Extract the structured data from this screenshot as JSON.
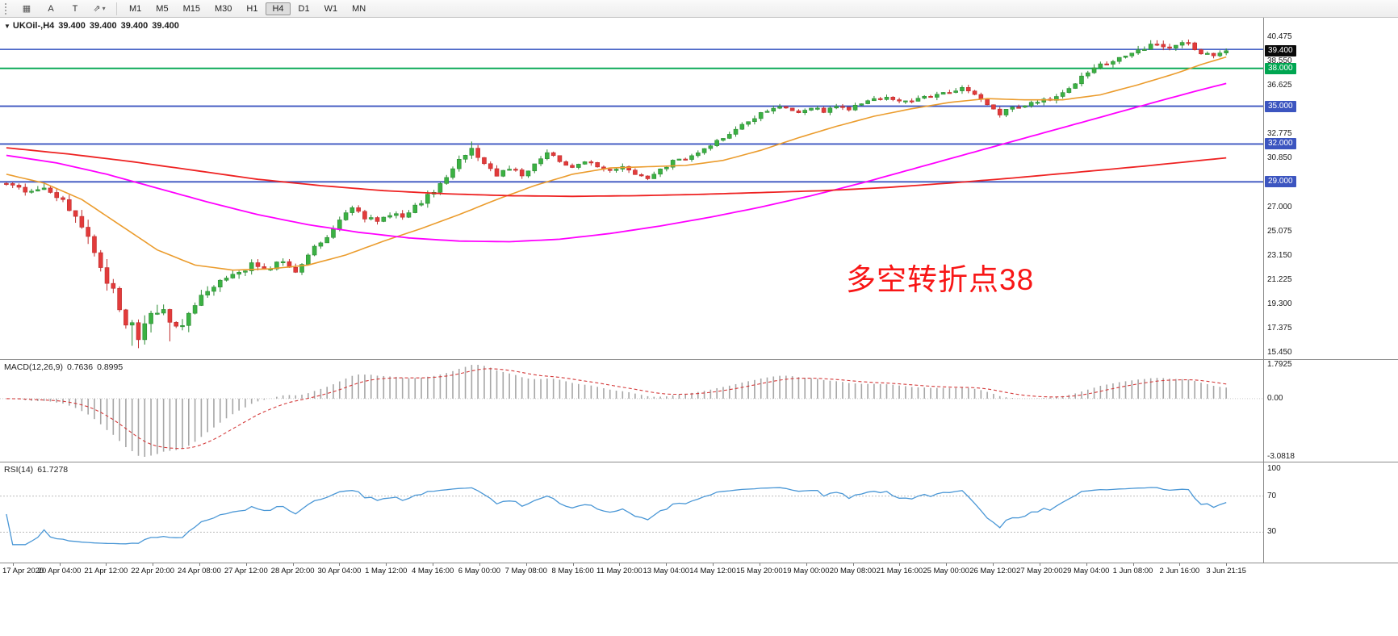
{
  "toolbar": {
    "tools": [
      {
        "name": "charts-bar",
        "glyph": "▦"
      },
      {
        "name": "cursor-tool",
        "label": "A"
      },
      {
        "name": "text-tool",
        "label": "T"
      },
      {
        "name": "drawing-tools",
        "glyph": "⇗",
        "dropdown": "▾"
      }
    ],
    "timeframes": [
      "M1",
      "M5",
      "M15",
      "M30",
      "H1",
      "H4",
      "D1",
      "W1",
      "MN"
    ],
    "active_timeframe": "H4"
  },
  "chart": {
    "marker_glyph": "▼",
    "symbol_period": "UKOil-,H4",
    "ohlc": [
      "39.400",
      "39.400",
      "39.400",
      "39.400"
    ],
    "annotation": {
      "text": "多空转折点38",
      "color": "#f81616"
    },
    "colors": {
      "up": "#3bb143",
      "up_border": "#2b8a33",
      "down": "#e23b3b",
      "down_border": "#bf2c2c"
    },
    "price_scale": {
      "max": 40.475,
      "min": 15.45,
      "step": 1.925,
      "current": {
        "label": "39.400",
        "price": 39.4,
        "bg": "#0a0a0a",
        "fg": "#ffffff"
      }
    },
    "levels": [
      {
        "name": "hline-39-5",
        "price": 39.5,
        "color": "#4a66c8",
        "label": null
      },
      {
        "name": "hline-38",
        "price": 38.0,
        "color": "#00a651",
        "label": "38.000"
      },
      {
        "name": "hline-35",
        "price": 35.0,
        "color": "#3c55c0",
        "label": "35.000"
      },
      {
        "name": "hline-32",
        "price": 32.0,
        "color": "#3c55c0",
        "label": "32.000"
      },
      {
        "name": "hline-29",
        "price": 29.0,
        "color": "#3c55c0",
        "label": "29.000"
      }
    ]
  },
  "macd": {
    "title": "MACD(12,26,9)",
    "value_main": "0.7636",
    "value_signal": "0.8995",
    "scale_labels": {
      "top": "1.7925",
      "zero": "0.00",
      "bottom": "-3.0818"
    },
    "histogram_color": "#a6a6a6",
    "signal_color": "#d43a3a"
  },
  "rsi": {
    "title": "RSI(14)",
    "value": "61.7278",
    "scale_labels": [
      "100",
      "70",
      "30"
    ],
    "line_color": "#4a97d6"
  },
  "time_axis": {
    "labels": [
      "17 Apr 2020",
      "20 Apr 04:00",
      "21 Apr 12:00",
      "22 Apr 20:00",
      "24 Apr 08:00",
      "27 Apr 12:00",
      "28 Apr 20:00",
      "30 Apr 04:00",
      "1 May 12:00",
      "4 May 16:00",
      "6 May 00:00",
      "7 May 08:00",
      "8 May 16:00",
      "11 May 20:00",
      "13 May 04:00",
      "14 May 12:00",
      "15 May 20:00",
      "19 May 00:00",
      "20 May 08:00",
      "21 May 16:00",
      "25 May 00:00",
      "26 May 12:00",
      "27 May 20:00",
      "29 May 04:00",
      "1 Jun 08:00",
      "2 Jun 16:00",
      "3 Jun 21:15"
    ]
  },
  "chart_data": {
    "type": "candlestick",
    "symbol": "UKOil-",
    "timeframe": "H4",
    "n_candles": 195,
    "close_waypoints": [
      [
        0,
        28.8
      ],
      [
        3,
        28.3
      ],
      [
        6,
        28.6
      ],
      [
        9,
        27.6
      ],
      [
        11,
        26.3
      ],
      [
        13,
        24.6
      ],
      [
        15,
        22.3
      ],
      [
        17,
        20.2
      ],
      [
        19,
        18.0
      ],
      [
        21,
        16.9
      ],
      [
        23,
        18.3
      ],
      [
        25,
        19.2
      ],
      [
        26,
        18.1
      ],
      [
        28,
        17.4
      ],
      [
        30,
        19.4
      ],
      [
        33,
        20.8
      ],
      [
        36,
        21.6
      ],
      [
        39,
        22.4
      ],
      [
        41,
        21.9
      ],
      [
        44,
        22.8
      ],
      [
        46,
        21.9
      ],
      [
        48,
        23.3
      ],
      [
        51,
        24.6
      ],
      [
        53,
        26.0
      ],
      [
        55,
        26.8
      ],
      [
        57,
        26.2
      ],
      [
        59,
        25.8
      ],
      [
        61,
        26.5
      ],
      [
        63,
        26.1
      ],
      [
        66,
        27.4
      ],
      [
        68,
        28.3
      ],
      [
        70,
        29.5
      ],
      [
        72,
        30.9
      ],
      [
        74,
        31.6
      ],
      [
        76,
        30.6
      ],
      [
        78,
        29.6
      ],
      [
        80,
        30.1
      ],
      [
        82,
        29.5
      ],
      [
        84,
        30.4
      ],
      [
        86,
        31.2
      ],
      [
        88,
        30.7
      ],
      [
        90,
        30.2
      ],
      [
        92,
        30.6
      ],
      [
        94,
        30.3
      ],
      [
        96,
        29.8
      ],
      [
        98,
        30.1
      ],
      [
        100,
        29.5
      ],
      [
        102,
        29.2
      ],
      [
        104,
        29.9
      ],
      [
        106,
        30.6
      ],
      [
        108,
        30.9
      ],
      [
        110,
        31.4
      ],
      [
        112,
        31.9
      ],
      [
        114,
        32.5
      ],
      [
        116,
        33.2
      ],
      [
        118,
        33.9
      ],
      [
        120,
        34.4
      ],
      [
        123,
        34.9
      ],
      [
        126,
        34.5
      ],
      [
        128,
        34.9
      ],
      [
        130,
        34.6
      ],
      [
        132,
        35.1
      ],
      [
        134,
        34.8
      ],
      [
        137,
        35.4
      ],
      [
        140,
        35.7
      ],
      [
        142,
        35.3
      ],
      [
        145,
        35.6
      ],
      [
        148,
        35.9
      ],
      [
        150,
        36.1
      ],
      [
        152,
        36.4
      ],
      [
        154,
        35.8
      ],
      [
        156,
        35.1
      ],
      [
        158,
        34.4
      ],
      [
        160,
        34.9
      ],
      [
        163,
        35.3
      ],
      [
        166,
        35.6
      ],
      [
        168,
        36.2
      ],
      [
        170,
        36.9
      ],
      [
        172,
        37.6
      ],
      [
        174,
        38.2
      ],
      [
        176,
        38.6
      ],
      [
        178,
        38.9
      ],
      [
        180,
        39.4
      ],
      [
        182,
        39.9
      ],
      [
        184,
        39.6
      ],
      [
        186,
        39.9
      ],
      [
        188,
        40.0
      ],
      [
        190,
        39.2
      ],
      [
        192,
        39.0
      ],
      [
        194,
        39.4
      ]
    ],
    "volatility_waypoints": [
      [
        0,
        0.3
      ],
      [
        10,
        0.55
      ],
      [
        14,
        0.95
      ],
      [
        22,
        0.95
      ],
      [
        28,
        0.7
      ],
      [
        34,
        0.5
      ],
      [
        50,
        0.35
      ],
      [
        60,
        0.4
      ],
      [
        70,
        0.45
      ],
      [
        80,
        0.35
      ],
      [
        100,
        0.3
      ],
      [
        120,
        0.3
      ],
      [
        150,
        0.3
      ],
      [
        170,
        0.35
      ],
      [
        185,
        0.4
      ],
      [
        194,
        0.3
      ]
    ],
    "force_low": [
      [
        20,
        16.0
      ],
      [
        26,
        16.35
      ]
    ],
    "force_high": [
      [
        74,
        32.2
      ],
      [
        188,
        40.28
      ]
    ],
    "last_close": 39.4,
    "moving_averages": [
      {
        "name": "ma-fast-orange",
        "color": "#eb9c2d",
        "width": 1.6,
        "points": [
          [
            0,
            29.6
          ],
          [
            6,
            28.9
          ],
          [
            12,
            27.6
          ],
          [
            18,
            25.6
          ],
          [
            24,
            23.6
          ],
          [
            30,
            22.4
          ],
          [
            36,
            22.0
          ],
          [
            42,
            22.1
          ],
          [
            48,
            22.4
          ],
          [
            54,
            23.2
          ],
          [
            60,
            24.3
          ],
          [
            66,
            25.3
          ],
          [
            72,
            26.4
          ],
          [
            78,
            27.6
          ],
          [
            84,
            28.7
          ],
          [
            90,
            29.6
          ],
          [
            96,
            30.1
          ],
          [
            102,
            30.2
          ],
          [
            108,
            30.3
          ],
          [
            114,
            30.7
          ],
          [
            120,
            31.5
          ],
          [
            126,
            32.5
          ],
          [
            132,
            33.4
          ],
          [
            138,
            34.2
          ],
          [
            144,
            34.8
          ],
          [
            150,
            35.3
          ],
          [
            156,
            35.6
          ],
          [
            162,
            35.5
          ],
          [
            168,
            35.5
          ],
          [
            174,
            35.9
          ],
          [
            180,
            36.7
          ],
          [
            186,
            37.6
          ],
          [
            190,
            38.3
          ],
          [
            194,
            38.9
          ]
        ]
      },
      {
        "name": "ma-mid-magenta",
        "color": "#ff00ff",
        "width": 1.8,
        "points": [
          [
            0,
            31.1
          ],
          [
            8,
            30.5
          ],
          [
            16,
            29.6
          ],
          [
            24,
            28.5
          ],
          [
            32,
            27.4
          ],
          [
            40,
            26.4
          ],
          [
            48,
            25.6
          ],
          [
            56,
            25.0
          ],
          [
            64,
            24.55
          ],
          [
            72,
            24.3
          ],
          [
            80,
            24.25
          ],
          [
            88,
            24.45
          ],
          [
            96,
            24.9
          ],
          [
            104,
            25.5
          ],
          [
            112,
            26.2
          ],
          [
            120,
            27.0
          ],
          [
            128,
            27.9
          ],
          [
            136,
            28.9
          ],
          [
            144,
            30.0
          ],
          [
            152,
            31.1
          ],
          [
            160,
            32.2
          ],
          [
            168,
            33.3
          ],
          [
            176,
            34.4
          ],
          [
            184,
            35.5
          ],
          [
            190,
            36.3
          ],
          [
            194,
            36.8
          ]
        ]
      },
      {
        "name": "ma-slow-red",
        "color": "#ee2222",
        "width": 1.8,
        "points": [
          [
            0,
            31.7
          ],
          [
            10,
            31.2
          ],
          [
            20,
            30.6
          ],
          [
            30,
            29.9
          ],
          [
            40,
            29.2
          ],
          [
            50,
            28.7
          ],
          [
            60,
            28.3
          ],
          [
            70,
            28.05
          ],
          [
            80,
            27.9
          ],
          [
            90,
            27.85
          ],
          [
            100,
            27.9
          ],
          [
            110,
            28.0
          ],
          [
            120,
            28.15
          ],
          [
            130,
            28.3
          ],
          [
            140,
            28.55
          ],
          [
            150,
            28.9
          ],
          [
            160,
            29.3
          ],
          [
            170,
            29.75
          ],
          [
            180,
            30.2
          ],
          [
            187,
            30.55
          ],
          [
            194,
            30.9
          ]
        ]
      }
    ],
    "indicators": {
      "macd": {
        "fast": 12,
        "slow": 26,
        "signal": 9,
        "display_max": 1.7925,
        "display_min": -3.0818
      },
      "rsi": {
        "period": 14,
        "levels": [
          70,
          30
        ]
      }
    }
  }
}
